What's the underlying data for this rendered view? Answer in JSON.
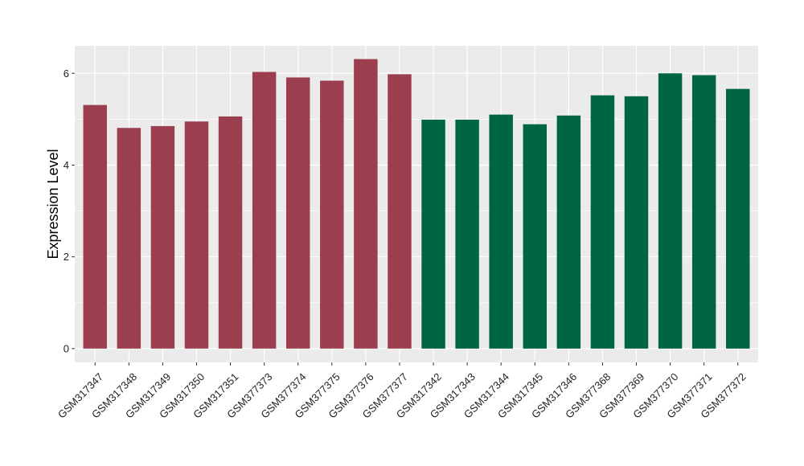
{
  "chart_data": {
    "type": "bar",
    "title": "",
    "xlabel": "",
    "ylabel": "Expression Level",
    "ylim": [
      -0.3,
      6.6
    ],
    "yticks": [
      0,
      2,
      4,
      6
    ],
    "grid": true,
    "legend": "none",
    "categories": [
      "GSM317347",
      "GSM317348",
      "GSM317349",
      "GSM317350",
      "GSM317351",
      "GSM377373",
      "GSM377374",
      "GSM377375",
      "GSM377376",
      "GSM377377",
      "GSM317342",
      "GSM317343",
      "GSM317344",
      "GSM317345",
      "GSM317346",
      "GSM377368",
      "GSM377369",
      "GSM377370",
      "GSM377371",
      "GSM377372"
    ],
    "values": [
      5.31,
      4.81,
      4.85,
      4.95,
      5.06,
      6.03,
      5.91,
      5.84,
      6.31,
      5.98,
      4.99,
      4.99,
      5.1,
      4.89,
      5.08,
      5.52,
      5.5,
      6.0,
      5.96,
      5.66
    ],
    "groups": [
      0,
      0,
      0,
      0,
      0,
      0,
      0,
      0,
      0,
      0,
      1,
      1,
      1,
      1,
      1,
      1,
      1,
      1,
      1,
      1
    ],
    "group_colors": [
      "#9b3f4f",
      "#006544"
    ],
    "panel_background": "#ebebeb",
    "grid_color": "#ffffff"
  }
}
